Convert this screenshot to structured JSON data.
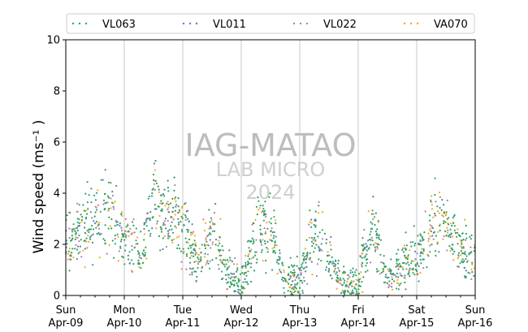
{
  "chart_data": {
    "type": "scatter",
    "ylabel": "Wind speed (ms⁻¹ )",
    "ylim": [
      0,
      10
    ],
    "yticks": [
      "0",
      "2",
      "4",
      "6",
      "8",
      "10"
    ],
    "x_range": [
      "2023-04-09",
      "2023-04-16"
    ],
    "xticks": [
      {
        "day": "Sun",
        "date": "Apr-09"
      },
      {
        "day": "Mon",
        "date": "Apr-10"
      },
      {
        "day": "Tue",
        "date": "Apr-11"
      },
      {
        "day": "Wed",
        "date": "Apr-12"
      },
      {
        "day": "Thu",
        "date": "Apr-13"
      },
      {
        "day": "Fri",
        "date": "Apr-14"
      },
      {
        "day": "Sat",
        "date": "Apr-15"
      },
      {
        "day": "Sun",
        "date": "Apr-16"
      }
    ],
    "grid": "vertical",
    "legend_position": "top",
    "watermark": [
      "IAG-MATAO",
      "LAB MICRO",
      "2024"
    ],
    "series": [
      {
        "name": "VL063",
        "color": "#2ca25f"
      },
      {
        "name": "VL011",
        "color": "#5b7fa8"
      },
      {
        "name": "VL022",
        "color": "#b57ab5"
      },
      {
        "name": "VA070",
        "color": "#f5a623"
      }
    ],
    "profile": {
      "hours": [
        0,
        6,
        12,
        18,
        24,
        30,
        36,
        42,
        48,
        54,
        60,
        66,
        72,
        78,
        84,
        90,
        96,
        102,
        108,
        114,
        120,
        126,
        132,
        138,
        144,
        150,
        156,
        162,
        168
      ],
      "wind_speed": [
        2.1,
        2.5,
        3.0,
        3.3,
        2.3,
        1.5,
        3.7,
        3.1,
        2.7,
        1.3,
        2.5,
        1.0,
        0.4,
        2.6,
        2.4,
        0.7,
        0.5,
        2.6,
        1.4,
        0.5,
        0.5,
        2.8,
        0.7,
        1.2,
        1.4,
        2.9,
        2.8,
        1.8,
        1.4
      ]
    }
  }
}
